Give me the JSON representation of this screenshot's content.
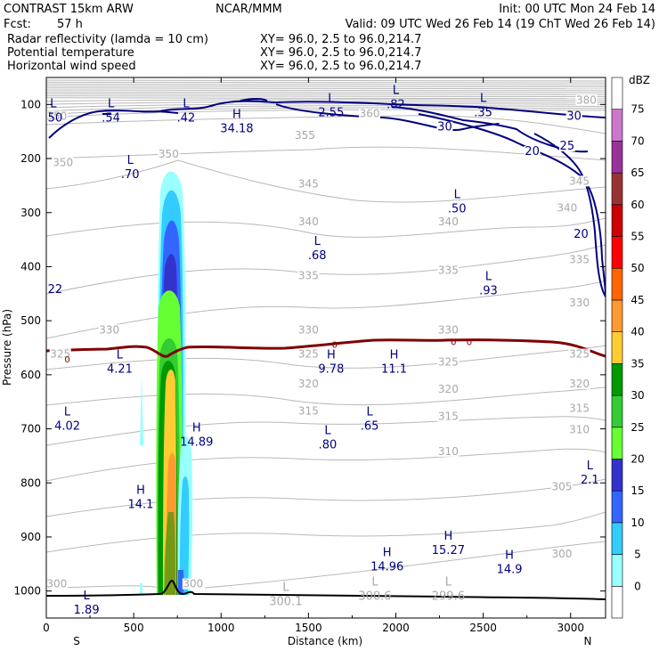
{
  "header": {
    "model": "CONTRAST 15km ARW",
    "center": "NCAR/MMM",
    "init": "Init: 00 UTC Mon 24 Feb 14",
    "fcst_label": "Fcst:",
    "fcst_value": "57 h",
    "valid": "Valid: 09 UTC Wed 26 Feb 14 (19 ChT Wed 26 Feb 14)"
  },
  "fields": [
    {
      "name": "Radar reflectivity (lamda = 10 cm)",
      "xy": "XY=  96.0,  2.5 to  96.0,214.7",
      "color": "#000000"
    },
    {
      "name": "Potential temperature",
      "xy": "XY=  96.0,  2.5 to  96.0,214.7",
      "color": "#c0c0c0"
    },
    {
      "name": "Horizontal wind speed",
      "xy": "XY=  96.0,  2.5 to  96.0,214.7",
      "color": "#000080"
    }
  ],
  "chart_data": {
    "type": "cross-section",
    "xlabel": "Distance (km)",
    "ylabel": "Pressure (hPa)",
    "xlim": [
      0,
      3200
    ],
    "ylim": [
      1050,
      50
    ],
    "x_ticks": [
      0,
      500,
      1000,
      1500,
      2000,
      2500,
      3000
    ],
    "y_ticks": [
      100,
      200,
      300,
      400,
      500,
      600,
      700,
      800,
      900,
      1000
    ],
    "x_end_labels": {
      "left": "S",
      "right": "N"
    },
    "colorbar": {
      "unit": "dBZ",
      "levels": [
        0,
        5,
        10,
        15,
        20,
        25,
        30,
        35,
        40,
        45,
        50,
        55,
        60,
        65,
        70,
        75
      ],
      "colors": [
        "#ffffff",
        "#99ffff",
        "#33ccff",
        "#3366ff",
        "#3333cc",
        "#66ff33",
        "#33cc33",
        "#009900",
        "#ffcc33",
        "#ff9933",
        "#ff6600",
        "#ff0000",
        "#cc0000",
        "#993333",
        "#993399",
        "#cc77cc",
        "#ffffff"
      ]
    },
    "theta_labels": [
      {
        "v": "380",
        "x": 3090,
        "p": 95
      },
      {
        "v": "360",
        "x": 1850,
        "p": 120
      },
      {
        "v": "350",
        "x": 60,
        "p": 125
      },
      {
        "v": "355",
        "x": 1480,
        "p": 160
      },
      {
        "v": "350",
        "x": 95,
        "p": 211
      },
      {
        "v": "350",
        "x": 700,
        "p": 195
      },
      {
        "v": "345",
        "x": 1500,
        "p": 250
      },
      {
        "v": "340",
        "x": 1500,
        "p": 320
      },
      {
        "v": "340",
        "x": 2300,
        "p": 320
      },
      {
        "v": "340",
        "x": 2980,
        "p": 295
      },
      {
        "v": "345",
        "x": 3050,
        "p": 245
      },
      {
        "v": "335",
        "x": 1500,
        "p": 420
      },
      {
        "v": "335",
        "x": 2300,
        "p": 410
      },
      {
        "v": "335",
        "x": 3050,
        "p": 390
      },
      {
        "v": "330",
        "x": 3050,
        "p": 470
      },
      {
        "v": "330",
        "x": 360,
        "p": 520
      },
      {
        "v": "330",
        "x": 1500,
        "p": 520
      },
      {
        "v": "330",
        "x": 2300,
        "p": 520
      },
      {
        "v": "325",
        "x": 80,
        "p": 565
      },
      {
        "v": "325",
        "x": 1500,
        "p": 565
      },
      {
        "v": "325",
        "x": 2300,
        "p": 580
      },
      {
        "v": "325",
        "x": 3050,
        "p": 565
      },
      {
        "v": "320",
        "x": 1500,
        "p": 620
      },
      {
        "v": "320",
        "x": 2300,
        "p": 630
      },
      {
        "v": "320",
        "x": 3050,
        "p": 620
      },
      {
        "v": "315",
        "x": 1500,
        "p": 670
      },
      {
        "v": "315",
        "x": 2300,
        "p": 680
      },
      {
        "v": "315",
        "x": 3050,
        "p": 665
      },
      {
        "v": "310",
        "x": 2300,
        "p": 745
      },
      {
        "v": "310",
        "x": 3050,
        "p": 705
      },
      {
        "v": "305",
        "x": 2950,
        "p": 810
      },
      {
        "v": "300",
        "x": 2950,
        "p": 935
      },
      {
        "v": "300",
        "x": 60,
        "p": 990
      },
      {
        "v": "300",
        "x": 840,
        "p": 990
      }
    ],
    "wind_labels": [
      {
        "v": "30",
        "x": 3020,
        "p": 125
      },
      {
        "v": "30",
        "x": 2280,
        "p": 145
      },
      {
        "v": "25",
        "x": 2980,
        "p": 180
      },
      {
        "v": "20",
        "x": 2780,
        "p": 190
      },
      {
        "v": "20",
        "x": 3060,
        "p": 343
      }
    ],
    "zero_labels": [
      {
        "v": "0",
        "x": 120,
        "p": 572
      },
      {
        "v": "0",
        "x": 1650,
        "p": 545
      },
      {
        "v": "0",
        "x": 2330,
        "p": 540
      },
      {
        "v": "0",
        "x": 2420,
        "p": 540
      }
    ],
    "extrema": [
      {
        "t": "L",
        "v": ".50",
        "x": 40,
        "p": 115,
        "c": "navy"
      },
      {
        "t": "L",
        "v": ".54",
        "x": 370,
        "p": 115,
        "c": "navy"
      },
      {
        "t": "L",
        "v": ".42",
        "x": 800,
        "p": 115,
        "c": "navy"
      },
      {
        "t": "H",
        "v": "34.18",
        "x": 1090,
        "p": 135,
        "c": "navy"
      },
      {
        "t": "L",
        "v": "2.55",
        "x": 1630,
        "p": 105,
        "c": "navy"
      },
      {
        "t": "L",
        "v": ".82",
        "x": 2000,
        "p": 90,
        "c": "navy"
      },
      {
        "t": "L",
        "v": ".35",
        "x": 2500,
        "p": 105,
        "c": "navy"
      },
      {
        "t": "L",
        "v": ".70",
        "x": 480,
        "p": 220,
        "c": "navy"
      },
      {
        "t": "L",
        "v": ".50",
        "x": 2350,
        "p": 283,
        "c": "navy"
      },
      {
        "t": "L",
        "v": ".68",
        "x": 1550,
        "p": 370,
        "c": "navy"
      },
      {
        "t": "",
        "v": ".22",
        "x": 40,
        "p": 432,
        "c": "navy"
      },
      {
        "t": "L",
        "v": ".93",
        "x": 2530,
        "p": 435,
        "c": "navy"
      },
      {
        "t": "L",
        "v": "4.21",
        "x": 420,
        "p": 580,
        "c": "navy"
      },
      {
        "t": "H",
        "v": "9.78",
        "x": 1630,
        "p": 580,
        "c": "navy"
      },
      {
        "t": "H",
        "v": "11.1",
        "x": 1990,
        "p": 580,
        "c": "navy"
      },
      {
        "t": "L",
        "v": "4.02",
        "x": 120,
        "p": 685,
        "c": "navy"
      },
      {
        "t": "L",
        "v": ".65",
        "x": 1850,
        "p": 685,
        "c": "navy"
      },
      {
        "t": "H",
        "v": "14.89",
        "x": 860,
        "p": 715,
        "c": "navy"
      },
      {
        "t": "L",
        "v": ".80",
        "x": 1610,
        "p": 720,
        "c": "navy"
      },
      {
        "t": "L",
        "v": "2.1",
        "x": 3110,
        "p": 785,
        "c": "navy"
      },
      {
        "t": "H",
        "v": "14.1",
        "x": 540,
        "p": 830,
        "c": "navy"
      },
      {
        "t": "H",
        "v": "15.27",
        "x": 2300,
        "p": 915,
        "c": "navy"
      },
      {
        "t": "H",
        "v": "14.96",
        "x": 1950,
        "p": 945,
        "c": "navy"
      },
      {
        "t": "H",
        "v": "14.9",
        "x": 2650,
        "p": 950,
        "c": "navy"
      },
      {
        "t": "L",
        "v": "1.89",
        "x": 230,
        "p": 1025,
        "c": "navy"
      },
      {
        "t": "L",
        "v": "300.1",
        "x": 1370,
        "p": 1010,
        "c": "gray"
      },
      {
        "t": "L",
        "v": "300.6",
        "x": 1880,
        "p": 1000,
        "c": "gray"
      },
      {
        "t": "L",
        "v": "299.6",
        "x": 2300,
        "p": 1000,
        "c": "gray"
      }
    ]
  }
}
